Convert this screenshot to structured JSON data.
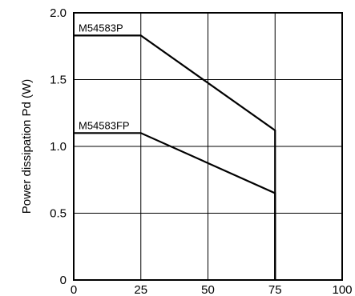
{
  "chart_data": {
    "type": "line",
    "title": "",
    "xlabel": "",
    "ylabel": "Power dissipation  Pd (W)",
    "xlim": [
      0,
      100
    ],
    "ylim": [
      0,
      2.0
    ],
    "x_ticks": [
      "0",
      "25",
      "50",
      "75",
      "100"
    ],
    "y_ticks": [
      "0",
      "0.5",
      "1.0",
      "1.5",
      "2.0"
    ],
    "grid": true,
    "legend": "none",
    "line_color": "#000000",
    "series": [
      {
        "name": "M54583P",
        "x": [
          0,
          25,
          75,
          75
        ],
        "y": [
          1.83,
          1.83,
          1.12,
          0
        ]
      },
      {
        "name": "M54583FP",
        "x": [
          0,
          25,
          75,
          75
        ],
        "y": [
          1.1,
          1.1,
          0.65,
          0
        ]
      }
    ]
  }
}
